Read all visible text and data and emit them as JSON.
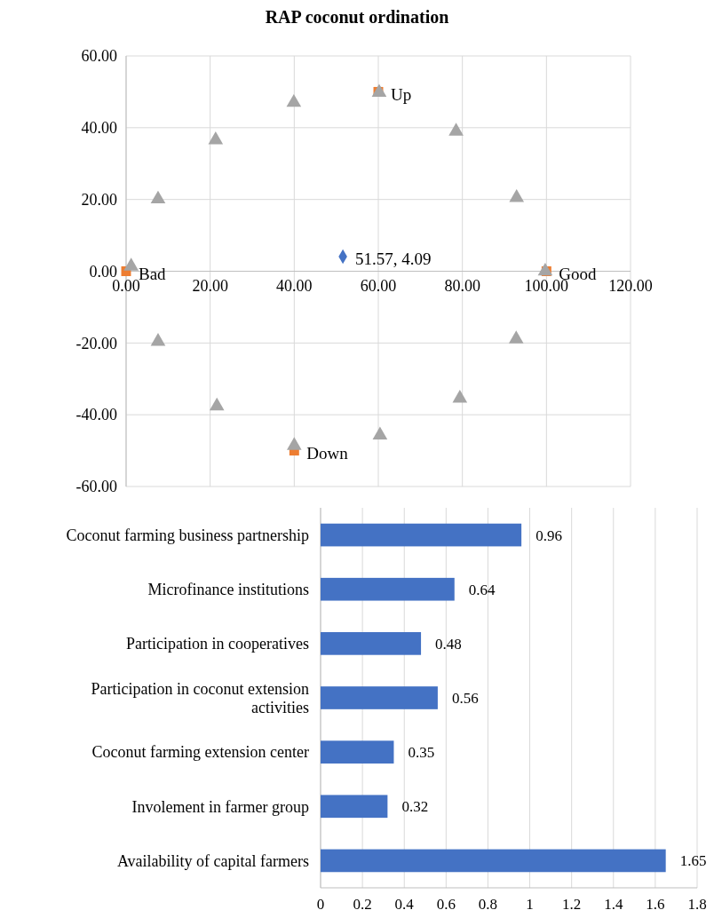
{
  "chart_data": [
    {
      "type": "scatter",
      "title": "RAP coconut ordination",
      "xlim": [
        0,
        120
      ],
      "ylim": [
        -60,
        60
      ],
      "xticks": [
        {
          "value": 0,
          "label": "0.00"
        },
        {
          "value": 20,
          "label": "20.00"
        },
        {
          "value": 40,
          "label": "40.00"
        },
        {
          "value": 60,
          "label": "60.00"
        },
        {
          "value": 80,
          "label": "80.00"
        },
        {
          "value": 100,
          "label": "100.00"
        },
        {
          "value": 120,
          "label": "120.00"
        }
      ],
      "yticks": [
        {
          "value": -60,
          "label": "-60.00"
        },
        {
          "value": -40,
          "label": "-40.00"
        },
        {
          "value": -20,
          "label": "-20.00"
        },
        {
          "value": 0,
          "label": "0.00"
        },
        {
          "value": 20,
          "label": "20.00"
        },
        {
          "value": 40,
          "label": "40.00"
        },
        {
          "value": 60,
          "label": "60.00"
        }
      ],
      "grid": true,
      "series": [
        {
          "color": "#ed7d31",
          "marker": "square",
          "x": [
            0,
            100,
            60,
            40
          ],
          "values": [
            0,
            0,
            50,
            -50
          ],
          "value_labels": [
            "Bad",
            "Good",
            "Up",
            "Down"
          ]
        },
        {
          "color": "#a5a5a5",
          "marker": "triangle",
          "x": [
            1.2,
            7.6,
            21.3,
            39.9,
            60.2,
            78.5,
            92.9,
            99.7,
            7.6,
            21.6,
            40,
            60.4,
            79.4,
            92.8
          ],
          "values": [
            1.4,
            20.1,
            36.6,
            47,
            49.8,
            39,
            20.5,
            0,
            -19.6,
            -37.6,
            -48.6,
            -45.7,
            -35.4,
            -18.9
          ]
        },
        {
          "color": "#4472c4",
          "marker": "diamond",
          "x": [
            51.57
          ],
          "values": [
            4.09
          ],
          "value_labels": [
            "51.57, 4.09"
          ]
        }
      ]
    },
    {
      "type": "bar",
      "orientation": "horizontal",
      "categories": [
        "Coconut farming business partnership",
        "Microfinance institutions",
        "Participation in cooperatives",
        "Participation in coconut extension activities",
        "Coconut farming extension center",
        "Involement in farmer group",
        "Availability of capital farmers"
      ],
      "values": [
        0.96,
        0.64,
        0.48,
        0.56,
        0.35,
        0.32,
        1.65
      ],
      "color": "#4472c4",
      "xlim": [
        0,
        1.8
      ],
      "xticks": [
        0,
        0.2,
        0.4,
        0.6,
        0.8,
        1,
        1.2,
        1.4,
        1.6,
        1.8
      ],
      "grid": "x",
      "data_labels": true
    }
  ]
}
